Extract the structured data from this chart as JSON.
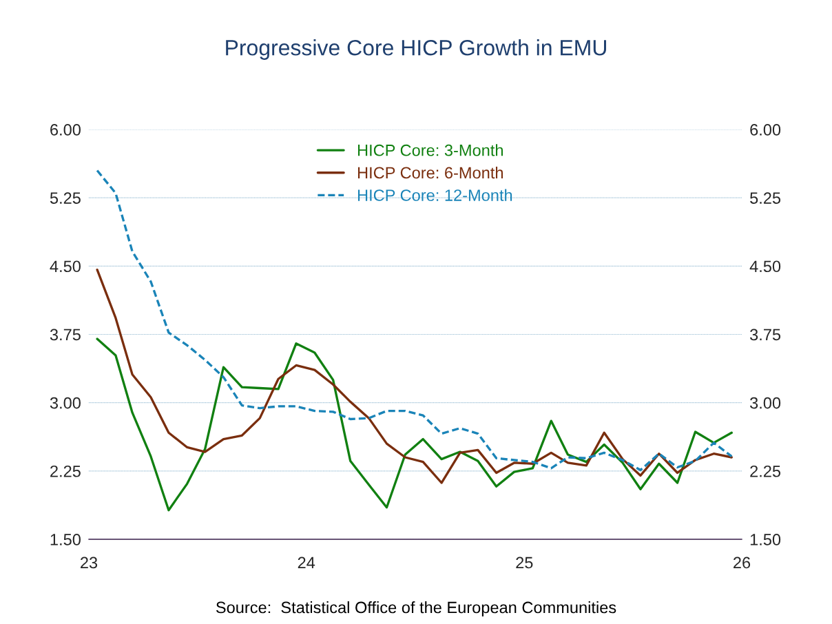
{
  "chart_data": {
    "type": "line",
    "title": "Progressive Core HICP Growth in EMU",
    "x": [
      "2023-01-15",
      "2023-02-15",
      "2023-03-15",
      "2023-04-15",
      "2023-05-15",
      "2023-06-15",
      "2023-07-15",
      "2023-08-15",
      "2023-09-15",
      "2023-10-15",
      "2023-11-15",
      "2023-12-15",
      "2024-01-15",
      "2024-02-15",
      "2024-03-15",
      "2024-04-15",
      "2024-05-15",
      "2024-06-15",
      "2024-07-15",
      "2024-08-15",
      "2024-09-15",
      "2024-10-15",
      "2024-11-15",
      "2024-12-15",
      "2025-01-15",
      "2025-02-15",
      "2025-03-15",
      "2025-04-15",
      "2025-05-15",
      "2025-06-15",
      "2025-07-15",
      "2025-08-15",
      "2025-09-15",
      "2025-10-15",
      "2025-11-15",
      "2025-12-15"
    ],
    "series": [
      {
        "name": "HICP Core: 3-Month",
        "color": "#118011",
        "line_style": "solid",
        "values": [
          3.7,
          3.52,
          2.89,
          2.41,
          1.82,
          2.11,
          2.49,
          3.39,
          3.17,
          3.16,
          3.15,
          3.65,
          3.55,
          3.25,
          2.36,
          2.1,
          1.85,
          2.43,
          2.6,
          2.38,
          2.46,
          2.36,
          2.08,
          2.24,
          2.28,
          2.8,
          2.43,
          2.35,
          2.54,
          2.34,
          2.05,
          2.33,
          2.12,
          2.68,
          2.56,
          2.67
        ]
      },
      {
        "name": "HICP Core: 6-Month",
        "color": "#7a2e0e",
        "line_style": "solid",
        "values": [
          4.46,
          3.93,
          3.31,
          3.06,
          2.67,
          2.51,
          2.46,
          2.6,
          2.64,
          2.83,
          3.26,
          3.41,
          3.36,
          3.2,
          3.01,
          2.83,
          2.55,
          2.4,
          2.35,
          2.12,
          2.45,
          2.48,
          2.23,
          2.34,
          2.33,
          2.45,
          2.34,
          2.31,
          2.67,
          2.38,
          2.2,
          2.44,
          2.23,
          2.37,
          2.44,
          2.4
        ]
      },
      {
        "name": "HICP Core: 12-Month",
        "color": "#1a84b8",
        "line_style": "dashed",
        "values": [
          5.55,
          5.3,
          4.66,
          4.33,
          3.77,
          3.63,
          3.47,
          3.28,
          2.97,
          2.94,
          2.96,
          2.96,
          2.91,
          2.9,
          2.82,
          2.83,
          2.91,
          2.91,
          2.86,
          2.66,
          2.72,
          2.66,
          2.39,
          2.37,
          2.35,
          2.28,
          2.4,
          2.39,
          2.45,
          2.37,
          2.26,
          2.44,
          2.29,
          2.36,
          2.56,
          2.41
        ]
      }
    ],
    "xlim": [
      "2023",
      "2026"
    ],
    "xticks": [
      {
        "value": "2023",
        "label": "23"
      },
      {
        "value": "2024",
        "label": "24"
      },
      {
        "value": "2025",
        "label": "25"
      },
      {
        "value": "2026",
        "label": "26"
      }
    ],
    "ylim": [
      1.5,
      6.0
    ],
    "yticks": [
      {
        "value": 1.5,
        "label": "1.50"
      },
      {
        "value": 2.25,
        "label": "2.25"
      },
      {
        "value": 3.0,
        "label": "3.00"
      },
      {
        "value": 3.75,
        "label": "3.75"
      },
      {
        "value": 4.5,
        "label": "4.50"
      },
      {
        "value": 5.25,
        "label": "5.25"
      },
      {
        "value": 6.0,
        "label": "6.00"
      }
    ],
    "y2lim": [
      1.5,
      6.0
    ],
    "y2ticks": [
      {
        "value": 1.5,
        "label": "1.50"
      },
      {
        "value": 2.25,
        "label": "2.25"
      },
      {
        "value": 3.0,
        "label": "3.00"
      },
      {
        "value": 3.75,
        "label": "3.75"
      },
      {
        "value": 4.5,
        "label": "4.50"
      },
      {
        "value": 5.25,
        "label": "5.25"
      },
      {
        "value": 6.0,
        "label": "6.00"
      }
    ],
    "grid": "y",
    "legend": "top",
    "annotations": [
      "Source:  Statistical Office of the European Communities"
    ]
  }
}
